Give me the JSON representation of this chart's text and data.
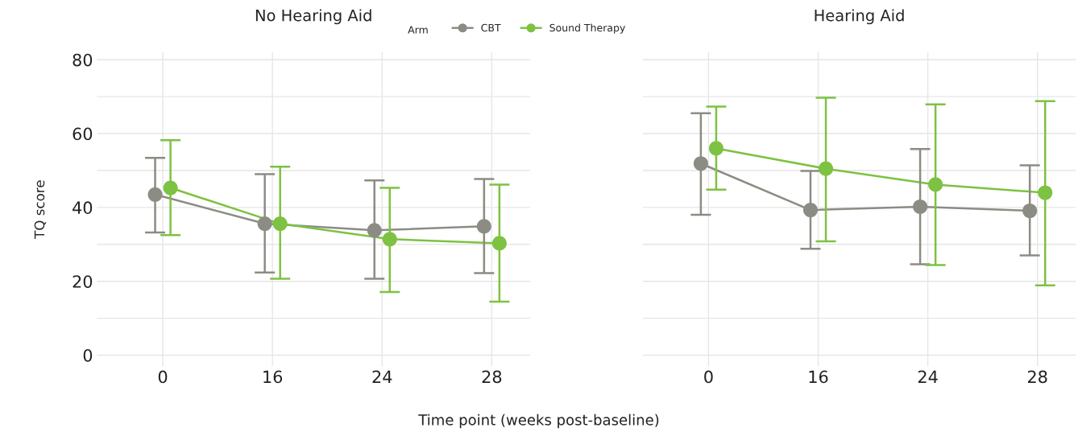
{
  "chart_data": [
    {
      "type": "line",
      "title": "No Hearing Aid",
      "xlabel": "Time point (weeks post-baseline)",
      "ylabel": "TQ score",
      "legend_title": "Arm",
      "legend": "top right",
      "grid": true,
      "marker": "circle",
      "line_style": "solid",
      "categories": [
        "0",
        "16",
        "24",
        "28"
      ],
      "ylim": [
        -3,
        82
      ],
      "yticks": [
        0,
        {
          "value": 10,
          "label": null
        },
        20,
        {
          "value": 30,
          "label": null
        },
        40,
        {
          "value": 50,
          "label": null
        },
        60,
        {
          "value": 70,
          "label": null
        },
        80
      ],
      "series": [
        {
          "name": "CBT",
          "color": "#8c8c85",
          "values": [
            43.5,
            35.6,
            33.8,
            34.9
          ],
          "errors": [
            [
              33.2,
              53.4
            ],
            [
              22.4,
              49.0
            ],
            [
              20.7,
              47.3
            ],
            [
              22.2,
              47.7
            ]
          ]
        },
        {
          "name": "Sound Therapy",
          "color": "#7dc242",
          "values": [
            45.3,
            35.6,
            31.4,
            30.3
          ],
          "errors": [
            [
              32.5,
              58.2
            ],
            [
              20.7,
              51.0
            ],
            [
              17.1,
              45.3
            ],
            [
              14.5,
              46.2
            ]
          ]
        }
      ]
    },
    {
      "type": "line",
      "title": "Hearing Aid",
      "grid": true,
      "marker": "circle",
      "line_style": "solid",
      "tick_labels": "x",
      "categories": [
        "0",
        "16",
        "24",
        "28"
      ],
      "ylim": [
        -3,
        82
      ],
      "yticks": [
        0,
        {
          "value": 10,
          "label": null
        },
        20,
        {
          "value": 30,
          "label": null
        },
        40,
        {
          "value": 50,
          "label": null
        },
        60,
        {
          "value": 70,
          "label": null
        },
        80
      ],
      "series": [
        {
          "color": "#8c8c85",
          "values": [
            51.9,
            39.3,
            40.2,
            39.1
          ],
          "errors": [
            [
              38.0,
              65.5
            ],
            [
              28.8,
              49.9
            ],
            [
              24.6,
              55.8
            ],
            [
              27.0,
              51.4
            ]
          ]
        },
        {
          "color": "#7dc242",
          "values": [
            56.0,
            50.5,
            46.2,
            44.0
          ],
          "errors": [
            [
              44.8,
              67.3
            ],
            [
              30.8,
              69.7
            ],
            [
              24.4,
              67.9
            ],
            [
              18.9,
              68.8
            ]
          ]
        }
      ]
    }
  ]
}
